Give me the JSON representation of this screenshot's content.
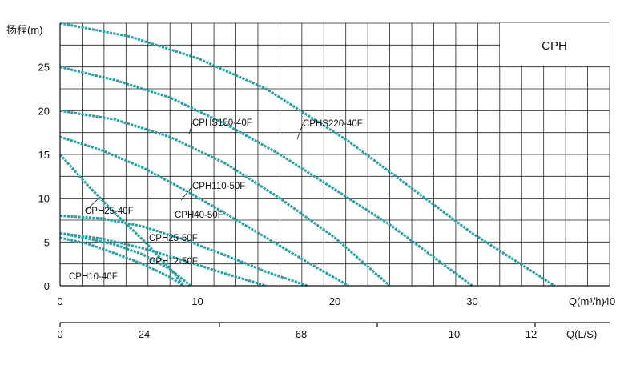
{
  "chart_data": {
    "type": "line",
    "title": "CPH",
    "ylabel": "扬程(m)",
    "xlabel": "Q(m³/h)",
    "x2label": "Q(L/S)",
    "xlim": [
      0,
      40
    ],
    "ylim": [
      0,
      30
    ],
    "x_ticks": [
      "0",
      "10",
      "20",
      "30",
      "40"
    ],
    "y_ticks": [
      "0",
      "5",
      "10",
      "15",
      "20",
      "25"
    ],
    "x2_ticks": [
      "0",
      "24",
      "68",
      "10",
      "12"
    ],
    "curve_color": "#1fa3a3",
    "series": [
      {
        "name": "CPHS220-40F",
        "x": [
          0,
          5,
          10,
          15,
          18,
          21,
          24,
          27,
          30,
          32,
          34,
          36
        ],
        "y": [
          30,
          28.5,
          26,
          22.5,
          19.5,
          16.5,
          13,
          9.5,
          6,
          4,
          2,
          0
        ]
      },
      {
        "name": "CPHS150-40F",
        "x": [
          0,
          4,
          8,
          12,
          16,
          20,
          24,
          27,
          30
        ],
        "y": [
          25,
          23.5,
          21.5,
          18.5,
          15,
          11,
          7,
          3.5,
          0
        ]
      },
      {
        "name": "CPH110-50F",
        "x": [
          0,
          4,
          8,
          12,
          16,
          20,
          24
        ],
        "y": [
          20,
          19,
          17,
          14,
          10,
          5.5,
          0
        ]
      },
      {
        "name": "CPH40-50F",
        "x": [
          0,
          3,
          6,
          9,
          12,
          15,
          18,
          21
        ],
        "y": [
          17,
          15.5,
          13.5,
          11,
          8.3,
          5.5,
          2.7,
          0
        ]
      },
      {
        "name": "CPH25-50F",
        "x": [
          0,
          3,
          6,
          9,
          12,
          15,
          18
        ],
        "y": [
          8,
          7.7,
          6.8,
          5.3,
          3.5,
          1.6,
          0
        ]
      },
      {
        "name": "CPH12-50F",
        "x": [
          0,
          3,
          6,
          9,
          12,
          15
        ],
        "y": [
          6,
          5.4,
          4.3,
          2.9,
          1.4,
          0
        ]
      },
      {
        "name": "CPH25-40F",
        "x": [
          0,
          2,
          4,
          6,
          8,
          9
        ],
        "y": [
          15,
          11.5,
          8.3,
          5.3,
          2,
          0
        ]
      },
      {
        "name": "CPH10-40F",
        "x": [
          0,
          2,
          4,
          6,
          8,
          9
        ],
        "y": [
          5.5,
          4.8,
          3.7,
          2.5,
          1,
          0
        ]
      },
      {
        "name": "",
        "x": [
          0,
          2,
          4,
          6,
          8,
          9.5
        ],
        "y": [
          6,
          5.4,
          4.7,
          3.6,
          1.9,
          0
        ]
      }
    ]
  }
}
